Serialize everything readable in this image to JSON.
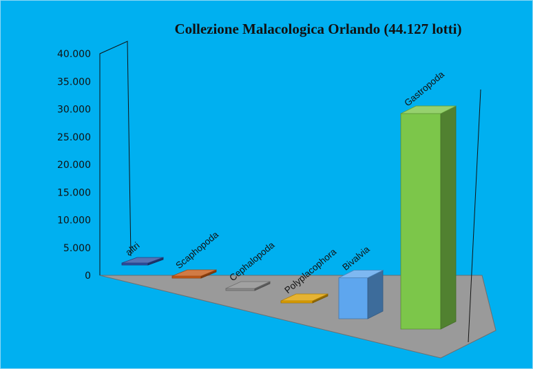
{
  "chart_data": {
    "type": "bar",
    "title": "Collezione Malacologica Orlando (44.127 lotti)",
    "categories": [
      "altri",
      "Scaphopoda",
      "Cephalopoda",
      "Polyplacophora",
      "Bivalvia",
      "Gastropoda"
    ],
    "values": [
      150,
      150,
      120,
      300,
      7000,
      36400
    ],
    "ylim": [
      0,
      40000
    ],
    "yticks": [
      "0",
      "5.000",
      "10.000",
      "15.000",
      "20.000",
      "25.000",
      "30.000",
      "35.000",
      "40.000"
    ],
    "xlabel": "",
    "ylabel": "",
    "grid": false,
    "legend": "none",
    "colors": [
      "#2e4fa0",
      "#c65a16",
      "#8a8a8a",
      "#e0a000",
      "#5ea6ee",
      "#7cc64a"
    ]
  }
}
